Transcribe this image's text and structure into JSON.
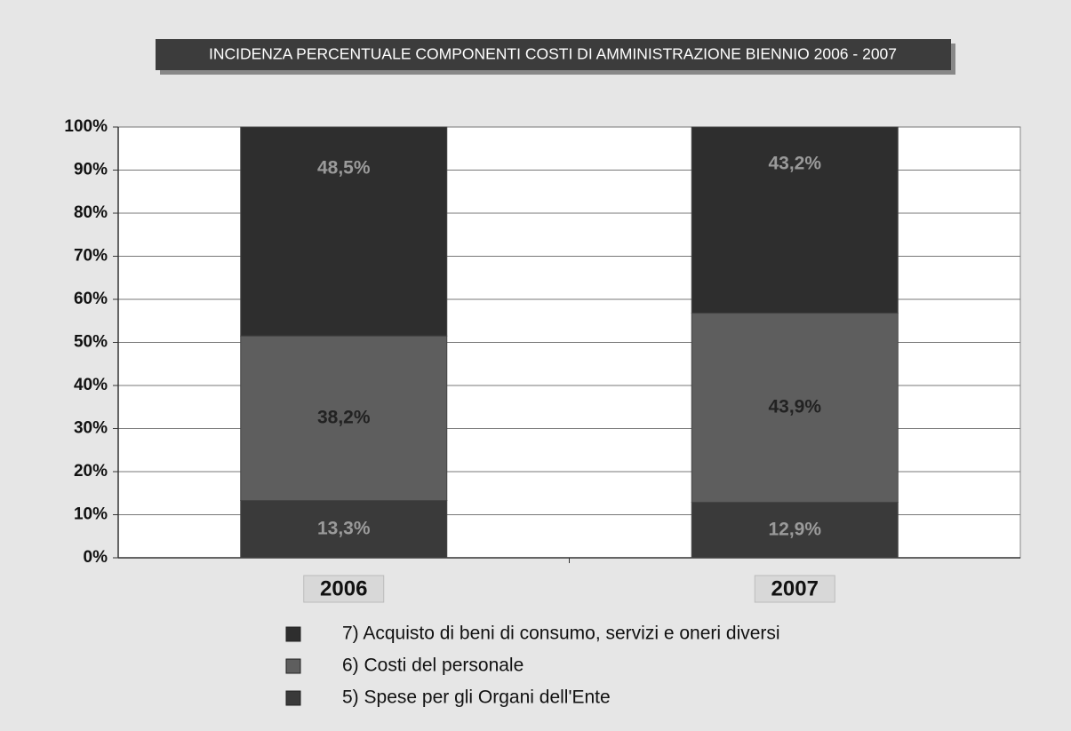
{
  "chart_data": {
    "type": "stacked_bar",
    "title": "INCIDENZA PERCENTUALE COMPONENTI COSTI DI AMMINISTRAZIONE BIENNIO 2006 - 2007",
    "categories": [
      "2006",
      "2007"
    ],
    "series": [
      {
        "name": "5) Spese per gli Organi dell'Ente",
        "color": "#3a3a3a",
        "values": [
          13.3,
          12.9
        ],
        "value_labels": [
          "13,3%",
          "12,9%"
        ]
      },
      {
        "name": "6) Costi del personale",
        "color": "#5e5e5e",
        "values": [
          38.2,
          43.9
        ],
        "value_labels": [
          "38,2%",
          "43,9%"
        ]
      },
      {
        "name": "7) Acquisto di beni di consumo, servizi e oneri diversi",
        "color": "#2e2e2e",
        "values": [
          48.5,
          43.2
        ],
        "value_labels": [
          "48,5%",
          "43,2%"
        ]
      }
    ],
    "ylim": [
      0,
      100
    ],
    "yticks": [
      {
        "value": 0,
        "label": "0%"
      },
      {
        "value": 10,
        "label": "10%"
      },
      {
        "value": 20,
        "label": "20%"
      },
      {
        "value": 30,
        "label": "30%"
      },
      {
        "value": 40,
        "label": "40%"
      },
      {
        "value": 50,
        "label": "50%"
      },
      {
        "value": 60,
        "label": "60%"
      },
      {
        "value": 70,
        "label": "70%"
      },
      {
        "value": 80,
        "label": "80%"
      },
      {
        "value": 90,
        "label": "90%"
      },
      {
        "value": 100,
        "label": "100%"
      }
    ],
    "grid": true
  }
}
